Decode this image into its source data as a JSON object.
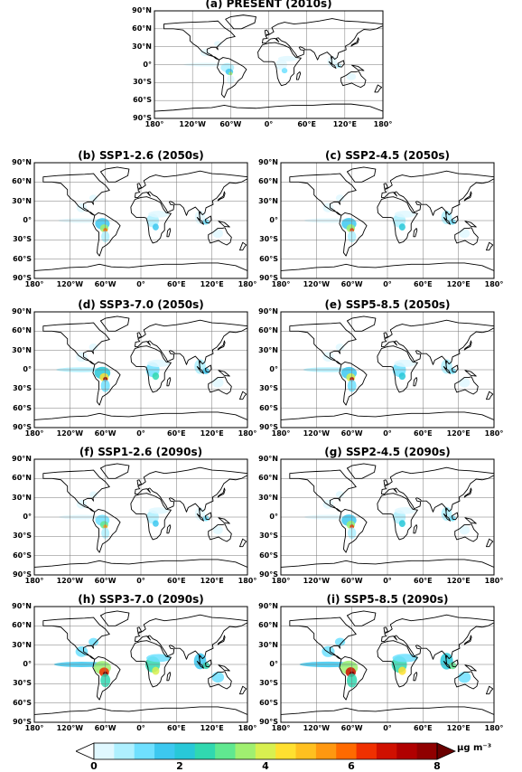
{
  "panels": [
    {
      "title": "(a) PRESENT (2010s)",
      "level": 0.4,
      "show_lat": true
    },
    {
      "title": "(b) SSP1-2.6 (2050s)",
      "level": 0.7,
      "show_lat": true
    },
    {
      "title": "(c) SSP2-4.5 (2050s)",
      "level": 0.75,
      "show_lat": true
    },
    {
      "title": "(d) SSP3-7.0 (2050s)",
      "level": 0.9,
      "show_lat": true
    },
    {
      "title": "(e) SSP5-8.5 (2050s)",
      "level": 0.85,
      "show_lat": true
    },
    {
      "title": "(f) SSP1-2.6 (2090s)",
      "level": 0.65,
      "show_lat": true
    },
    {
      "title": "(g) SSP2-4.5 (2090s)",
      "level": 0.75,
      "show_lat": true
    },
    {
      "title": "(h) SSP3-7.0 (2090s)",
      "level": 1.1,
      "show_lat": true
    },
    {
      "title": "(i) SSP5-8.5 (2090s)",
      "level": 1.2,
      "show_lat": true
    }
  ],
  "axes": {
    "lat_labels": [
      "90°N",
      "60°N",
      "30°N",
      "0°",
      "30°S",
      "60°S",
      "90°S"
    ],
    "lon_labels": [
      "180°",
      "120°W",
      "60°W",
      "0°",
      "60°E",
      "120°E",
      "180°"
    ]
  },
  "colorbar": {
    "ticks": [
      "0",
      "2",
      "4",
      "6",
      "8"
    ],
    "units": "μg m⁻³",
    "colors": [
      "#ffffff",
      "#e0f8ff",
      "#aef0ff",
      "#6fe0ff",
      "#3cc8f0",
      "#28c8d8",
      "#30d8b0",
      "#60e890",
      "#a0f070",
      "#d8f050",
      "#ffe030",
      "#ffc020",
      "#ff9810",
      "#ff6a00",
      "#f03000",
      "#d01000",
      "#b00000",
      "#900000",
      "#6a0000"
    ]
  }
}
